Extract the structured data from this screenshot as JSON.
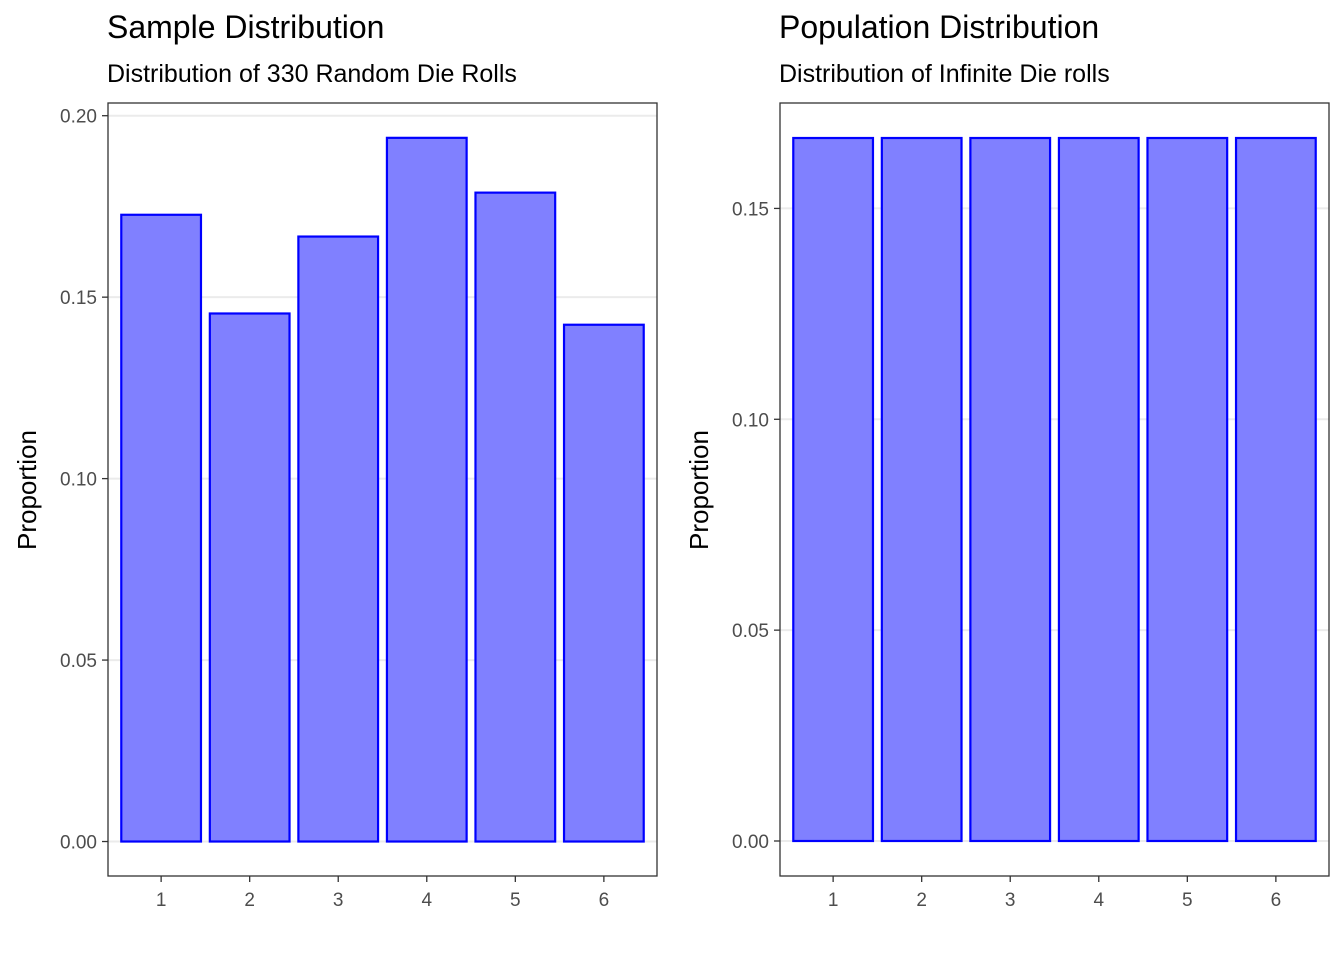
{
  "chart_data": [
    {
      "type": "bar",
      "title": "Sample Distribution",
      "subtitle": "Distribution of 330 Random Die Rolls",
      "xlabel": "",
      "ylabel": "Proportion",
      "categories": [
        "1",
        "2",
        "3",
        "4",
        "5",
        "6"
      ],
      "values": [
        0.1727,
        0.1455,
        0.1667,
        0.1939,
        0.1788,
        0.1424
      ],
      "ylim": [
        -0.0095,
        0.2035
      ],
      "yticks": [
        "0.00",
        "0.05",
        "0.10",
        "0.15",
        "0.20"
      ],
      "grid": true,
      "legend": "none",
      "colors": {
        "fill": "#8080ff",
        "stroke": "#0000ff"
      }
    },
    {
      "type": "bar",
      "title": "Population Distribution",
      "subtitle": "Distribution of Infinite Die rolls",
      "xlabel": "",
      "ylabel": "Proportion",
      "categories": [
        "1",
        "2",
        "3",
        "4",
        "5",
        "6"
      ],
      "values": [
        0.1667,
        0.1667,
        0.1667,
        0.1667,
        0.1667,
        0.1667
      ],
      "ylim": [
        -0.0083,
        0.175
      ],
      "yticks": [
        "0.00",
        "0.05",
        "0.10",
        "0.15"
      ],
      "grid": true,
      "legend": "none",
      "colors": {
        "fill": "#8080ff",
        "stroke": "#0000ff"
      }
    }
  ]
}
